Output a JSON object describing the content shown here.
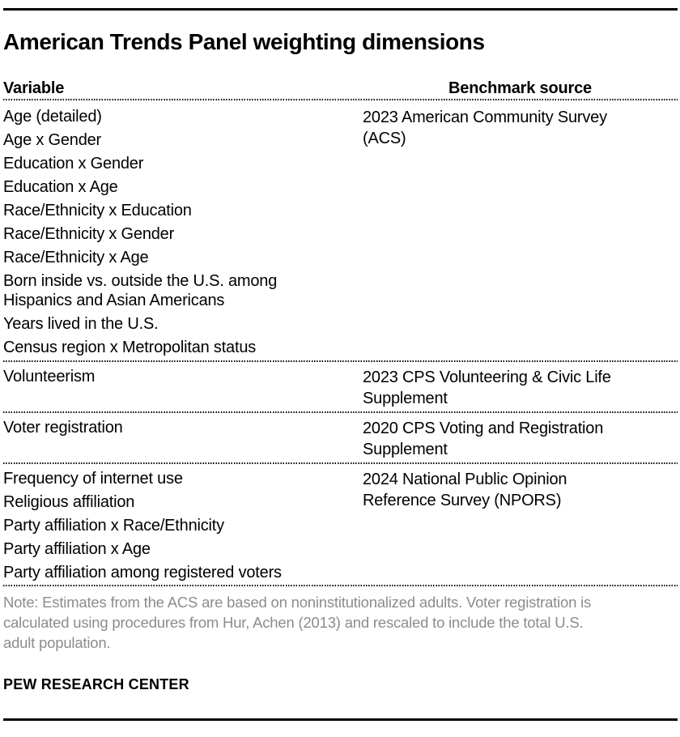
{
  "title": "American Trends Panel weighting dimensions",
  "colors": {
    "text": "#000000",
    "note_text": "#8c8c8c",
    "rule": "#000000"
  },
  "table": {
    "col1_header": "Variable",
    "col2_header": "Benchmark source",
    "sections": [
      {
        "variables": [
          "Age (detailed)",
          "Age x Gender",
          "Education x Gender",
          "Education x Age",
          "Race/Ethnicity x Education",
          "Race/Ethnicity x Gender",
          "Race/Ethnicity x Age",
          "Born inside vs. outside the U.S. among\nHispanics and Asian Americans",
          "Years lived in the U.S.",
          "Census region x Metropolitan status"
        ],
        "source": "2023 American Community Survey\n(ACS)"
      },
      {
        "variables": [
          "Volunteerism"
        ],
        "source": "2023 CPS Volunteering & Civic Life\nSupplement"
      },
      {
        "variables": [
          "Voter registration"
        ],
        "source": "2020 CPS Voting and Registration\nSupplement"
      },
      {
        "variables": [
          "Frequency of internet use",
          "Religious affiliation",
          "Party affiliation x Race/Ethnicity",
          "Party affiliation x Age",
          "Party affiliation among registered voters"
        ],
        "source": "2024 National Public Opinion\nReference Survey (NPORS)"
      }
    ]
  },
  "note": "Note: Estimates from the ACS are based on noninstitutionalized adults. Voter registration is\ncalculated using procedures from Hur, Achen (2013) and rescaled to include the total U.S.\nadult population.",
  "footer": "PEW RESEARCH CENTER"
}
